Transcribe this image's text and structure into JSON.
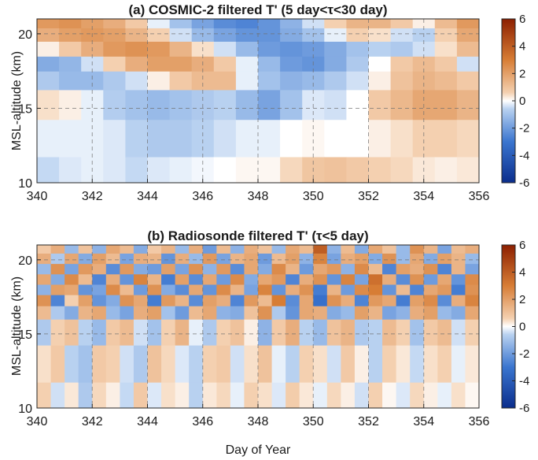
{
  "chart_data": [
    {
      "type": "heatmap",
      "title": "(a) COSMIC-2 filtered T' (5 day<τ<30 day)",
      "xlabel": "",
      "ylabel": "MSL-altitude (km)",
      "xlim": [
        340,
        356
      ],
      "ylim": [
        10,
        21
      ],
      "x_ticks": [
        "340",
        "342",
        "344",
        "346",
        "348",
        "350",
        "352",
        "354",
        "356"
      ],
      "y_ticks": [
        "10",
        "15",
        "20"
      ],
      "grid": true,
      "colorbar": {
        "range": [
          -6,
          6
        ],
        "ticks": [
          "6",
          "4",
          "2",
          "0",
          "-2",
          "-4",
          "-6"
        ],
        "colormap": "blue-white-red"
      },
      "days": [
        340,
        340.8,
        341.6,
        342.4,
        343.2,
        344.0,
        344.8,
        345.6,
        346.4,
        347.2,
        348.0,
        348.8,
        349.6,
        350.4,
        351.2,
        352.0,
        352.8,
        353.6,
        354.4,
        355.2
      ],
      "altitudes_km": [
        10.5,
        13.0,
        15.5,
        17.0,
        18.0,
        19.0,
        20.0,
        20.8
      ],
      "values_T_prime_K": [
        [
          -0.5,
          -0.3,
          -0.2,
          -0.3,
          -0.5,
          -0.3,
          -0.2,
          -0.1,
          0.0,
          0.1,
          0.1,
          0.5,
          0.9,
          1.0,
          0.8,
          0.6,
          0.5,
          0.3,
          0.2,
          0.3
        ],
        [
          -0.2,
          -0.2,
          -0.2,
          -0.3,
          -0.6,
          -0.8,
          -0.8,
          -0.6,
          -0.4,
          -0.2,
          -0.2,
          0.0,
          0.1,
          0.0,
          0.0,
          0.2,
          0.4,
          0.6,
          0.6,
          0.5
        ],
        [
          0.4,
          0.2,
          -0.2,
          -0.7,
          -1.0,
          -1.2,
          -1.0,
          -0.8,
          -0.6,
          -1.2,
          -1.8,
          -1.0,
          -0.3,
          -0.4,
          0.0,
          0.8,
          1.3,
          1.8,
          1.8,
          1.4
        ],
        [
          -0.8,
          -1.2,
          -1.2,
          -0.8,
          -0.4,
          0.2,
          0.8,
          1.2,
          1.2,
          -0.2,
          -1.0,
          -1.4,
          -1.2,
          -0.8,
          -0.4,
          0.2,
          1.0,
          1.4,
          1.2,
          0.8
        ],
        [
          -1.6,
          -1.3,
          -0.4,
          0.6,
          1.6,
          2.0,
          2.0,
          1.6,
          0.8,
          -0.2,
          -1.2,
          -2.0,
          -2.2,
          -1.6,
          -0.8,
          0.0,
          0.8,
          1.2,
          0.8,
          -0.4
        ],
        [
          0.2,
          0.8,
          1.6,
          2.2,
          2.4,
          2.2,
          1.4,
          0.4,
          -0.4,
          -1.2,
          -2.0,
          -2.2,
          -2.0,
          -1.6,
          -1.0,
          -0.6,
          -0.8,
          -0.4,
          0.4,
          1.2
        ],
        [
          1.6,
          2.0,
          2.2,
          2.0,
          1.4,
          0.6,
          -0.4,
          -1.2,
          -1.8,
          -2.2,
          -2.2,
          -1.6,
          -1.0,
          -0.2,
          0.6,
          0.4,
          -0.4,
          -0.6,
          0.6,
          1.8
        ],
        [
          2.2,
          2.4,
          2.0,
          1.6,
          0.8,
          -0.2,
          -1.0,
          -1.8,
          -2.4,
          -2.6,
          -2.2,
          -1.4,
          -0.4,
          0.6,
          1.4,
          1.4,
          0.8,
          0.2,
          1.2,
          2.2
        ]
      ]
    },
    {
      "type": "heatmap",
      "title": "(b) Radiosonde filtered T' (τ<5 day)",
      "xlabel": "Day of Year",
      "ylabel": "MSL-altitude (km)",
      "xlim": [
        340,
        356
      ],
      "ylim": [
        10,
        21
      ],
      "x_ticks": [
        "340",
        "342",
        "344",
        "346",
        "348",
        "350",
        "352",
        "354",
        "356"
      ],
      "y_ticks": [
        "10",
        "15",
        "20"
      ],
      "grid": true,
      "colorbar": {
        "range": [
          -6,
          6
        ],
        "ticks": [
          "6",
          "4",
          "2",
          "0",
          "-2",
          "-4",
          "-6"
        ],
        "colormap": "blue-white-red"
      },
      "days": [
        340,
        340.5,
        341,
        341.5,
        342,
        342.5,
        343,
        343.5,
        344,
        344.5,
        345,
        345.5,
        346,
        346.5,
        347,
        347.5,
        348,
        348.5,
        349,
        349.5,
        350,
        350.5,
        351,
        351.5,
        352,
        352.5,
        353,
        353.5,
        354,
        354.5,
        355,
        355.5
      ],
      "altitudes_km": [
        10.5,
        13.0,
        15.5,
        16.5,
        17.3,
        18.0,
        18.7,
        19.4,
        20.1,
        20.8
      ],
      "values_T_prime_K": [
        [
          0.6,
          -0.4,
          0.3,
          -0.8,
          0.5,
          0.2,
          -0.5,
          0.8,
          -0.3,
          0.4,
          0.2,
          -0.6,
          0.3,
          0.5,
          -0.2,
          0.6,
          0.4,
          -0.3,
          0.7,
          0.3,
          -0.2,
          0.5,
          0.2,
          -0.4,
          0.6,
          0.1,
          -0.3,
          0.5,
          0.2,
          -0.2,
          0.4,
          0.1
        ],
        [
          0.4,
          0.8,
          -0.6,
          -1.0,
          0.8,
          0.6,
          -0.4,
          -0.8,
          1.0,
          0.5,
          -0.3,
          -0.6,
          0.6,
          0.8,
          -0.4,
          0.4,
          1.0,
          -0.2,
          -0.6,
          0.6,
          0.4,
          -0.4,
          0.8,
          0.2,
          -0.6,
          0.6,
          0.3,
          -0.5,
          0.4,
          0.6,
          -0.2,
          0.3
        ],
        [
          -0.8,
          0.6,
          1.0,
          -0.6,
          -1.2,
          0.8,
          1.2,
          -0.4,
          -1.0,
          0.6,
          1.4,
          -0.2,
          -0.8,
          0.6,
          1.0,
          0.2,
          -1.4,
          0.8,
          1.6,
          -0.6,
          -1.2,
          1.0,
          1.4,
          -0.8,
          -0.6,
          1.2,
          0.6,
          -1.0,
          0.8,
          1.2,
          -0.4,
          0.6
        ],
        [
          1.2,
          -0.8,
          -1.6,
          1.4,
          1.8,
          -1.2,
          -1.8,
          1.6,
          2.0,
          -1.0,
          -2.0,
          1.2,
          1.8,
          -1.4,
          -1.6,
          1.0,
          2.4,
          -0.8,
          -2.2,
          1.8,
          1.6,
          -1.6,
          -1.2,
          2.0,
          1.4,
          -1.8,
          -1.4,
          1.6,
          2.0,
          -1.2,
          -1.6,
          1.8
        ],
        [
          2.4,
          -2.6,
          0.6,
          2.0,
          -2.2,
          -1.6,
          2.4,
          1.8,
          -2.8,
          2.2,
          1.4,
          -2.4,
          2.0,
          1.6,
          -2.6,
          2.2,
          1.2,
          3.0,
          -2.4,
          1.8,
          -3.2,
          2.4,
          1.6,
          -2.6,
          2.2,
          1.8,
          -2.8,
          2.0,
          2.6,
          -2.4,
          1.6,
          2.8
        ],
        [
          -1.4,
          2.0,
          1.8,
          -2.2,
          -1.8,
          2.6,
          1.2,
          -2.0,
          2.4,
          -1.6,
          -2.4,
          1.8,
          -2.2,
          2.6,
          1.4,
          -1.8,
          2.8,
          -2.2,
          1.6,
          2.4,
          -2.8,
          1.4,
          -2.0,
          2.6,
          3.0,
          -2.2,
          1.2,
          -2.6,
          1.8,
          2.2,
          -2.8,
          2.4
        ],
        [
          1.8,
          -1.6,
          2.6,
          1.2,
          -2.6,
          1.6,
          -2.2,
          2.8,
          1.4,
          -2.8,
          2.0,
          -2.4,
          1.8,
          -2.0,
          2.6,
          -1.6,
          1.8,
          2.2,
          -2.6,
          1.6,
          2.4,
          -2.2,
          2.8,
          -1.8,
          3.4,
          1.6,
          -2.4,
          2.4,
          -2.0,
          1.8,
          -2.2,
          2.6
        ],
        [
          -1.2,
          2.4,
          -1.8,
          2.2,
          1.6,
          -2.4,
          2.2,
          -1.6,
          -2.0,
          2.0,
          -1.8,
          2.4,
          -1.4,
          2.2,
          -2.4,
          1.8,
          -1.6,
          2.6,
          1.4,
          -2.0,
          1.8,
          2.2,
          -1.4,
          2.6,
          1.2,
          -2.6,
          2.0,
          1.6,
          2.4,
          -2.6,
          1.4,
          -1.8
        ],
        [
          1.6,
          -0.8,
          1.8,
          -1.6,
          2.0,
          1.2,
          -1.8,
          1.6,
          1.4,
          -2.2,
          1.6,
          -1.2,
          2.2,
          -1.8,
          1.4,
          1.8,
          -2.0,
          1.2,
          2.0,
          -1.4,
          2.8,
          -1.8,
          1.6,
          2.0,
          -1.6,
          2.4,
          -1.2,
          1.8,
          -1.6,
          2.0,
          1.4,
          -1.2
        ],
        [
          0.8,
          1.6,
          -1.2,
          1.0,
          -1.4,
          1.8,
          1.2,
          -1.6,
          0.8,
          1.4,
          -1.2,
          1.6,
          -2.0,
          1.2,
          -1.4,
          1.6,
          1.0,
          -1.2,
          1.8,
          1.2,
          4.0,
          -1.4,
          1.2,
          -1.6,
          1.8,
          1.0,
          -1.2,
          2.4,
          1.4,
          -1.8,
          1.2,
          1.6
        ]
      ]
    }
  ]
}
